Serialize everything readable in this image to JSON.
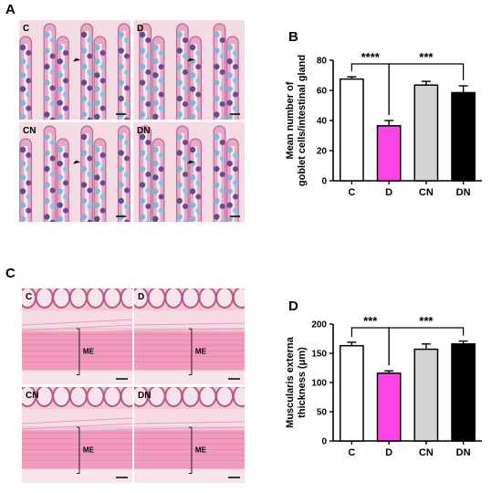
{
  "panels": {
    "A": {
      "letter": "A",
      "tiles": [
        "C",
        "D",
        "CN",
        "DN"
      ]
    },
    "B": {
      "letter": "B"
    },
    "C": {
      "letter": "C",
      "tiles": [
        "C",
        "D",
        "CN",
        "DN"
      ],
      "me_label": "ME"
    },
    "D": {
      "letter": "D"
    }
  },
  "colors": {
    "C": "#ffffff",
    "D": "#ff44e6",
    "CN": "#d3d3d3",
    "DN": "#000000"
  },
  "chart_data": [
    {
      "panel": "B",
      "type": "bar",
      "ylabel_lines": [
        "Mean number of",
        "goblet cells/intestinal gland"
      ],
      "categories": [
        "C",
        "D",
        "CN",
        "DN"
      ],
      "values": [
        67.5,
        36.5,
        63.5,
        58.5
      ],
      "errors": [
        1.5,
        3.5,
        2.5,
        4.5
      ],
      "ylim": [
        0,
        80
      ],
      "yticks": [
        "0",
        "20",
        "40",
        "60",
        "80"
      ],
      "significance": [
        {
          "from": "C",
          "to": "D",
          "label": "****"
        },
        {
          "from": "D",
          "to": "DN",
          "label": "***"
        }
      ]
    },
    {
      "panel": "D",
      "type": "bar",
      "ylabel_lines": [
        "Muscularis externa",
        "thickness (μm)"
      ],
      "categories": [
        "C",
        "D",
        "CN",
        "DN"
      ],
      "values": [
        163,
        116,
        157,
        166
      ],
      "errors": [
        6,
        4,
        9,
        5
      ],
      "ylim": [
        0,
        200
      ],
      "yticks": [
        "0",
        "50",
        "100",
        "150",
        "200"
      ],
      "significance": [
        {
          "from": "C",
          "to": "D",
          "label": "***"
        },
        {
          "from": "D",
          "to": "DN",
          "label": "***"
        }
      ]
    }
  ]
}
